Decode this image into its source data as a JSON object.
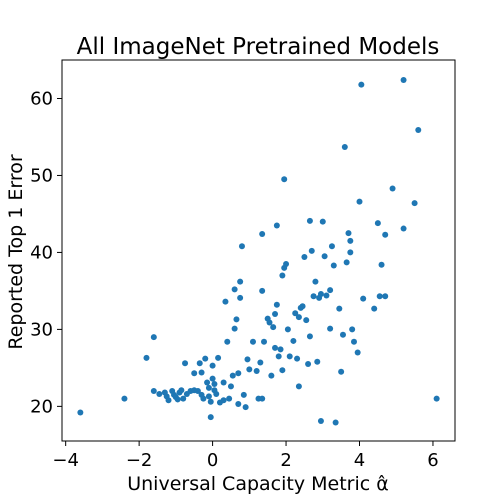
{
  "chart_data": {
    "type": "scatter",
    "title": "All ImageNet Pretrained Models",
    "xlabel": "Universal Capacity Metric α̂",
    "ylabel": "Reported Top 1 Error",
    "xlim": [
      -4.1,
      6.6
    ],
    "ylim": [
      15.5,
      65
    ],
    "xticks": [
      -4,
      -2,
      0,
      2,
      4,
      6
    ],
    "xtick_labels": [
      "−4",
      "−2",
      "0",
      "2",
      "4",
      "6"
    ],
    "yticks": [
      20,
      30,
      40,
      50,
      60
    ],
    "ytick_labels": [
      "20",
      "30",
      "40",
      "50",
      "60"
    ],
    "grid": false,
    "color": "#1f77b4",
    "points": [
      [
        -3.6,
        19.2
      ],
      [
        -2.4,
        21.0
      ],
      [
        -1.8,
        26.3
      ],
      [
        -1.6,
        29.0
      ],
      [
        -1.6,
        22.0
      ],
      [
        -1.45,
        21.6
      ],
      [
        -1.3,
        21.8
      ],
      [
        -1.25,
        21.3
      ],
      [
        -1.2,
        20.8
      ],
      [
        -1.1,
        22.0
      ],
      [
        -1.05,
        21.5
      ],
      [
        -1.0,
        21.2
      ],
      [
        -0.95,
        20.9
      ],
      [
        -0.9,
        21.8
      ],
      [
        -0.85,
        22.1
      ],
      [
        -0.8,
        21.0
      ],
      [
        -0.75,
        25.6
      ],
      [
        -0.7,
        21.6
      ],
      [
        -0.6,
        22.0
      ],
      [
        -0.5,
        24.3
      ],
      [
        -0.5,
        22.1
      ],
      [
        -0.4,
        22.0
      ],
      [
        -0.35,
        25.6
      ],
      [
        -0.3,
        21.5
      ],
      [
        -0.3,
        24.4
      ],
      [
        -0.25,
        21.0
      ],
      [
        -0.2,
        26.2
      ],
      [
        -0.15,
        23.1
      ],
      [
        -0.1,
        22.4
      ],
      [
        -0.1,
        21.3
      ],
      [
        -0.05,
        18.6
      ],
      [
        -0.05,
        20.6
      ],
      [
        0.0,
        25.3
      ],
      [
        0.0,
        23.6
      ],
      [
        0.05,
        22.9
      ],
      [
        0.05,
        22.1
      ],
      [
        0.1,
        21.6
      ],
      [
        0.15,
        26.3
      ],
      [
        0.2,
        20.5
      ],
      [
        0.3,
        20.8
      ],
      [
        0.3,
        23.1
      ],
      [
        0.35,
        33.6
      ],
      [
        0.4,
        28.4
      ],
      [
        0.45,
        21.0
      ],
      [
        0.5,
        22.6
      ],
      [
        0.55,
        24.0
      ],
      [
        0.6,
        30.1
      ],
      [
        0.6,
        35.2
      ],
      [
        0.65,
        31.3
      ],
      [
        0.7,
        24.3
      ],
      [
        0.7,
        20.3
      ],
      [
        0.75,
        36.2
      ],
      [
        0.75,
        34.1
      ],
      [
        0.8,
        40.8
      ],
      [
        0.85,
        21.5
      ],
      [
        0.9,
        19.9
      ],
      [
        0.95,
        26.1
      ],
      [
        1.0,
        24.8
      ],
      [
        1.1,
        28.4
      ],
      [
        1.2,
        24.6
      ],
      [
        1.25,
        21.0
      ],
      [
        1.3,
        25.7
      ],
      [
        1.35,
        42.4
      ],
      [
        1.35,
        35.0
      ],
      [
        1.35,
        21.0
      ],
      [
        1.4,
        28.4
      ],
      [
        1.5,
        31.4
      ],
      [
        1.55,
        30.9
      ],
      [
        1.6,
        24.0
      ],
      [
        1.65,
        30.3
      ],
      [
        1.7,
        27.6
      ],
      [
        1.7,
        32.0
      ],
      [
        1.75,
        43.5
      ],
      [
        1.75,
        33.2
      ],
      [
        1.8,
        26.5
      ],
      [
        1.85,
        27.4
      ],
      [
        1.9,
        24.7
      ],
      [
        1.9,
        37.0
      ],
      [
        1.95,
        49.5
      ],
      [
        1.95,
        38.0
      ],
      [
        2.0,
        38.5
      ],
      [
        2.05,
        30.0
      ],
      [
        2.1,
        26.5
      ],
      [
        2.2,
        28.5
      ],
      [
        2.25,
        32.1
      ],
      [
        2.3,
        26.2
      ],
      [
        2.35,
        31.6
      ],
      [
        2.35,
        22.6
      ],
      [
        2.4,
        32.8
      ],
      [
        2.45,
        33.0
      ],
      [
        2.5,
        39.4
      ],
      [
        2.55,
        31.2
      ],
      [
        2.6,
        25.5
      ],
      [
        2.65,
        29.1
      ],
      [
        2.65,
        44.1
      ],
      [
        2.7,
        40.2
      ],
      [
        2.75,
        34.3
      ],
      [
        2.8,
        36.2
      ],
      [
        2.85,
        25.8
      ],
      [
        2.9,
        34.1
      ],
      [
        2.95,
        18.1
      ],
      [
        2.95,
        34.6
      ],
      [
        3.0,
        44.0
      ],
      [
        3.05,
        39.5
      ],
      [
        3.1,
        34.4
      ],
      [
        3.2,
        35.1
      ],
      [
        3.2,
        30.1
      ],
      [
        3.25,
        40.8
      ],
      [
        3.3,
        38.3
      ],
      [
        3.35,
        17.9
      ],
      [
        3.45,
        32.7
      ],
      [
        3.5,
        24.5
      ],
      [
        3.55,
        29.3
      ],
      [
        3.6,
        53.7
      ],
      [
        3.65,
        38.7
      ],
      [
        3.7,
        42.5
      ],
      [
        3.75,
        41.5
      ],
      [
        3.75,
        40.0
      ],
      [
        3.8,
        30.0
      ],
      [
        3.85,
        28.4
      ],
      [
        3.95,
        27.0
      ],
      [
        4.0,
        46.6
      ],
      [
        4.05,
        61.8
      ],
      [
        4.1,
        34.0
      ],
      [
        4.4,
        32.7
      ],
      [
        4.5,
        43.8
      ],
      [
        4.55,
        34.3
      ],
      [
        4.6,
        38.4
      ],
      [
        4.7,
        42.3
      ],
      [
        4.7,
        34.3
      ],
      [
        4.9,
        48.3
      ],
      [
        5.2,
        43.1
      ],
      [
        5.2,
        62.4
      ],
      [
        5.5,
        46.4
      ],
      [
        5.6,
        55.9
      ],
      [
        6.1,
        21.0
      ]
    ]
  }
}
